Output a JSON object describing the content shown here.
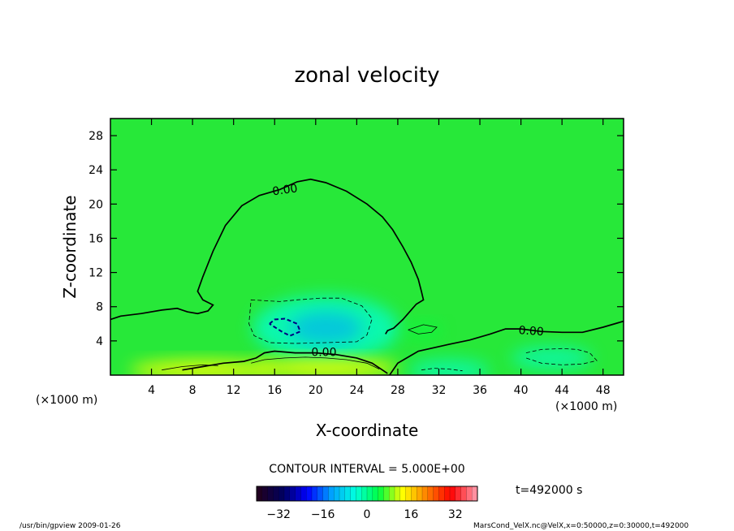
{
  "chart_data": {
    "type": "contour",
    "title": "zonal velocity",
    "xlabel": "X-coordinate",
    "ylabel": "Z-coordinate",
    "x_unit_label": "(×1000 m)",
    "y_unit_label": "(×1000 m)",
    "xlim": [
      0,
      50
    ],
    "ylim": [
      0,
      30
    ],
    "xticks": [
      4,
      8,
      12,
      16,
      20,
      24,
      28,
      32,
      36,
      40,
      44,
      48
    ],
    "yticks": [
      4,
      8,
      12,
      16,
      20,
      24,
      28
    ],
    "contour_interval_text": "CONTOUR INTERVAL = 5.000E+00",
    "contour_labels": [
      {
        "text": "0.00",
        "x": 17,
        "y": 21.7,
        "angle": -8
      },
      {
        "text": "0.00",
        "x": 41,
        "y": 5.2,
        "angle": 4
      },
      {
        "text": "0.00",
        "x": 20.8,
        "y": 2.7,
        "angle": 0
      }
    ],
    "zero_contours": [
      [
        [
          0,
          6.5
        ],
        [
          1,
          6.9
        ],
        [
          3,
          7.2
        ],
        [
          5,
          7.6
        ],
        [
          6.5,
          7.8
        ],
        [
          7.5,
          7.4
        ],
        [
          8.5,
          7.2
        ],
        [
          9.5,
          7.5
        ],
        [
          10,
          8.2
        ],
        [
          9,
          8.8
        ],
        [
          8.5,
          9.8
        ],
        [
          9,
          11.5
        ],
        [
          10,
          14.5
        ],
        [
          11.2,
          17.5
        ],
        [
          12.8,
          19.8
        ],
        [
          14.5,
          21.0
        ],
        [
          16.5,
          21.7
        ],
        [
          18.2,
          22.6
        ],
        [
          19.5,
          22.9
        ],
        [
          21,
          22.5
        ],
        [
          23,
          21.5
        ],
        [
          25,
          20.0
        ],
        [
          26.5,
          18.5
        ],
        [
          27.5,
          17.0
        ],
        [
          28.5,
          15.0
        ],
        [
          29.3,
          13.2
        ],
        [
          30,
          11.2
        ],
        [
          30.3,
          9.8
        ],
        [
          30.5,
          8.8
        ],
        [
          29.8,
          8.3
        ],
        [
          29.0,
          7.2
        ],
        [
          28.5,
          6.5
        ],
        [
          27.6,
          5.5
        ],
        [
          27.0,
          5.2
        ],
        [
          26.8,
          4.8
        ]
      ],
      [
        [
          27.2,
          0
        ],
        [
          28.0,
          1.4
        ],
        [
          29.0,
          2.1
        ],
        [
          30.0,
          2.8
        ],
        [
          31.5,
          3.2
        ],
        [
          33,
          3.6
        ],
        [
          35,
          4.1
        ],
        [
          37,
          4.8
        ],
        [
          38.5,
          5.4
        ],
        [
          40,
          5.4
        ],
        [
          42,
          5.1
        ],
        [
          44,
          5.0
        ],
        [
          46,
          5.0
        ],
        [
          48,
          5.6
        ],
        [
          50,
          6.3
        ]
      ],
      [
        [
          7,
          0.6
        ],
        [
          9,
          1.0
        ],
        [
          11,
          1.4
        ],
        [
          13,
          1.6
        ],
        [
          14.2,
          2.0
        ],
        [
          15,
          2.6
        ],
        [
          16,
          2.8
        ],
        [
          18,
          2.6
        ],
        [
          20,
          2.6
        ],
        [
          22,
          2.4
        ],
        [
          24,
          2.0
        ],
        [
          25.5,
          1.4
        ],
        [
          26.5,
          0.6
        ],
        [
          27,
          0.2
        ]
      ]
    ],
    "negative_contours": [
      [
        [
          15.5,
          6.0
        ],
        [
          16.0,
          6.5
        ],
        [
          17.0,
          6.6
        ],
        [
          18.2,
          6.0
        ],
        [
          18.5,
          5.1
        ],
        [
          17.5,
          4.6
        ],
        [
          16.8,
          5.0
        ],
        [
          15.5,
          6.0
        ]
      ],
      [
        [
          30.3,
          0.6
        ],
        [
          31.5,
          0.8
        ],
        [
          33,
          0.7
        ],
        [
          34.3,
          0.5
        ]
      ],
      [
        [
          13.7,
          8.8
        ],
        [
          16.5,
          8.6
        ],
        [
          18.2,
          8.8
        ],
        [
          20.5,
          9.0
        ],
        [
          22.5,
          9.0
        ],
        [
          24.5,
          8.1
        ],
        [
          25.5,
          6.6
        ],
        [
          25.0,
          4.7
        ],
        [
          24,
          3.9
        ],
        [
          21,
          3.8
        ],
        [
          18,
          3.7
        ],
        [
          15.5,
          3.8
        ],
        [
          14.0,
          4.6
        ],
        [
          13.5,
          6.0
        ],
        [
          13.6,
          7.4
        ],
        [
          13.7,
          8.8
        ]
      ],
      [
        [
          40.5,
          2.6
        ],
        [
          42,
          3.0
        ],
        [
          44,
          3.1
        ],
        [
          45.5,
          3.0
        ],
        [
          46.7,
          2.6
        ],
        [
          47.4,
          1.7
        ],
        [
          46,
          1.3
        ],
        [
          44,
          1.2
        ],
        [
          42,
          1.4
        ],
        [
          40.5,
          2.0
        ]
      ]
    ],
    "positive_contours": [
      [
        [
          29,
          5.3
        ],
        [
          30.5,
          5.9
        ],
        [
          31.8,
          5.6
        ],
        [
          31.3,
          5.0
        ],
        [
          30,
          4.8
        ],
        [
          29,
          5.3
        ]
      ],
      [
        [
          13.7,
          1.4
        ],
        [
          15,
          1.8
        ],
        [
          17,
          2.0
        ],
        [
          19,
          2.1
        ],
        [
          21,
          2.0
        ],
        [
          23,
          1.8
        ],
        [
          25,
          1.4
        ],
        [
          26.2,
          0.7
        ]
      ],
      [
        [
          5.0,
          0.6
        ],
        [
          7,
          1.0
        ],
        [
          9,
          1.2
        ],
        [
          10.5,
          1.1
        ]
      ]
    ],
    "field_features": [
      {
        "kind": "negative-center",
        "x": 21,
        "y": 5.5,
        "value": -10
      },
      {
        "kind": "negative-weak",
        "x": 43,
        "y": 2.0,
        "value": -5
      },
      {
        "kind": "negative-weak",
        "x": 33,
        "y": 0.5,
        "value": -10
      },
      {
        "kind": "positive-weak",
        "x": 30.5,
        "y": 5.2,
        "value": 5
      },
      {
        "kind": "positive-strong",
        "x": 21,
        "y": 0.8,
        "value": 12
      },
      {
        "kind": "positive-strong",
        "x": 9,
        "y": 0.6,
        "value": 8
      }
    ],
    "colorbar": {
      "range": [
        -40,
        40
      ],
      "ticks": [
        -32,
        -16,
        0,
        16,
        32
      ],
      "tick_labels": [
        "−32",
        "−16",
        "0",
        "16",
        "32"
      ],
      "colors": [
        "#200020",
        "#000060",
        "#0000ff",
        "#00a0ff",
        "#00ffe0",
        "#00ff40",
        "#ffff00",
        "#ff8000",
        "#ff0000",
        "#ff90a0"
      ]
    },
    "time_label": "t=492000 s"
  },
  "footer": {
    "left": "/usr/bin/gpview   2009-01-26",
    "right": "MarsCond_VelX.nc@VelX,x=0:50000,z=0:30000,t=492000"
  }
}
